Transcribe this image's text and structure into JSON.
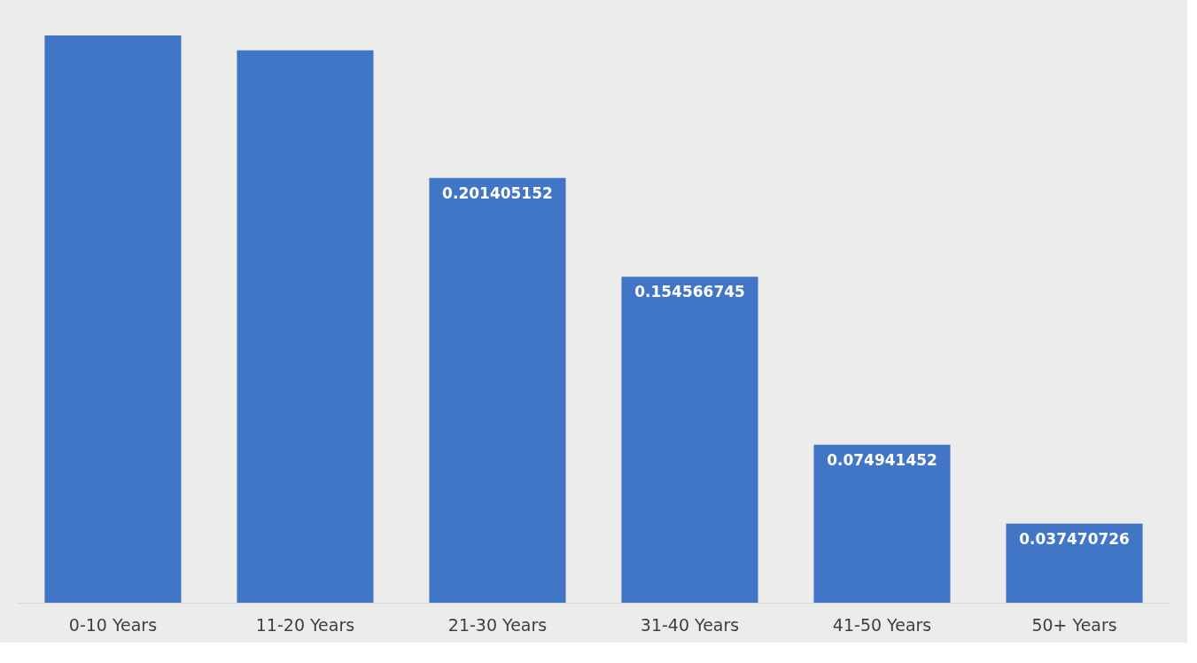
{
  "chart_data": {
    "type": "bar",
    "categories": [
      "0-10 Years",
      "11-20 Years",
      "21-30 Years",
      "31-40 Years",
      "41-50 Years",
      "50+ Years"
    ],
    "values": [
      0.269,
      0.262,
      0.201405152,
      0.154566745,
      0.074941452,
      0.037470726
    ],
    "value_labels": [
      null,
      null,
      "0.201405152",
      "0.154566745",
      "0.074941452",
      "0.037470726"
    ],
    "color": "#4175c6"
  }
}
